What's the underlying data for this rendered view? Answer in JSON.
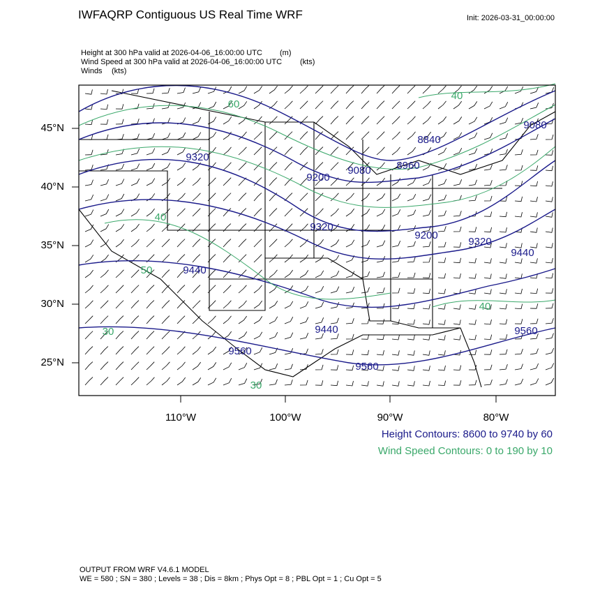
{
  "header": {
    "title": "IWFAQRP Contiguous US Real Time WRF",
    "init": "Init: 2026-03-31_00:00:00"
  },
  "fields": [
    {
      "label": "Height at 300 hPa valid at 2026-04-06_16:00:00 UTC",
      "units": "(m)"
    },
    {
      "label": "Wind Speed at 300 hPa valid at 2026-04-06_16:00:00 UTC",
      "units": "(kts)"
    },
    {
      "label": "Winds",
      "units": "(kts)"
    }
  ],
  "map": {
    "lat_labels": [
      "45°N",
      "40°N",
      "35°N",
      "30°N",
      "25°N"
    ],
    "lon_labels": [
      "110°W",
      "100°W",
      "90°W",
      "80°W"
    ],
    "height_labels": [
      "9320",
      "9200",
      "9080",
      "8840",
      "8960",
      "9080",
      "9320",
      "9200",
      "9320",
      "9440",
      "9440",
      "9440",
      "9560",
      "9560",
      "9560"
    ],
    "speed_labels": [
      "60",
      "40",
      "40",
      "50",
      "30",
      "40",
      "30"
    ]
  },
  "legend": {
    "height": "Height Contours: 8600 to 9740 by 60",
    "speed": "Wind Speed Contours: 0 to 190 by 10"
  },
  "footer": {
    "line1": "OUTPUT FROM WRF V4.6.1 MODEL",
    "line2": "WE = 580 ; SN = 380 ; Levels = 38 ; Dis = 8km ; Phys Opt = 8 ; PBL Opt = 1 ; Cu Opt = 5"
  }
}
